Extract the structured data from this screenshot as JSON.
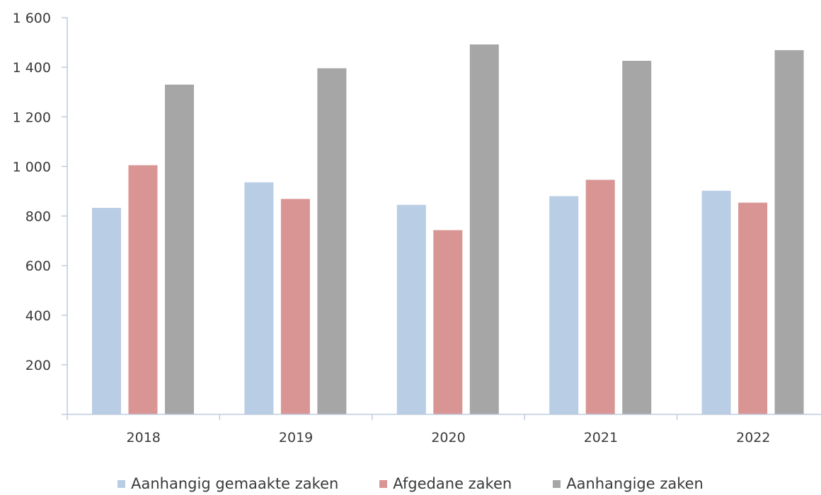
{
  "chart_data": {
    "type": "bar",
    "categories": [
      "2018",
      "2019",
      "2020",
      "2021",
      "2022"
    ],
    "series": [
      {
        "name": "Aanhangig gemaakte zaken",
        "color": "#b9cde5",
        "values": [
          833,
          936,
          845,
          880,
          902
        ]
      },
      {
        "name": "Afgedane zaken",
        "color": "#d99594",
        "values": [
          1005,
          869,
          743,
          946,
          854
        ]
      },
      {
        "name": "Aanhangige zaken",
        "color": "#a6a6a6",
        "values": [
          1330,
          1396,
          1492,
          1426,
          1469
        ]
      }
    ],
    "ylim": [
      0,
      1600
    ],
    "yticks": [
      200,
      400,
      600,
      800,
      1000,
      1200,
      1400,
      1600
    ],
    "ytick_labels": [
      "200",
      "400",
      "600",
      "800",
      "1 000",
      "1 200",
      "1 400",
      "1 600"
    ],
    "title": "",
    "xlabel": "",
    "ylabel": "",
    "grid": false,
    "legend_position": "bottom"
  }
}
